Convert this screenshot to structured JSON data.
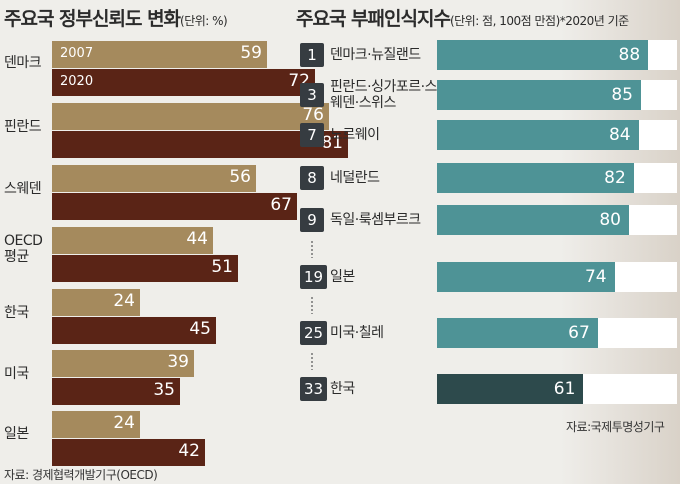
{
  "left": {
    "title": "주요국 정부신뢰도 변화",
    "unit": "(단위: %)",
    "source": "자료: 경제협력개발기구(OECD)"
  },
  "right": {
    "title": "주요국 부패인식지수",
    "unit": "(단위: 점, 100점 만점)*2020년 기준",
    "source": "자료:국제투명성기구"
  },
  "colors": {
    "bar_2007": "#a58a5d",
    "bar_2020": "#5a2416",
    "bar_cpi": "#4e9396",
    "bar_cpi_highlight": "#2d4a4c",
    "rank_badge": "#363c41"
  },
  "chart_data": [
    {
      "type": "bar",
      "orientation": "horizontal",
      "title": "주요국 정부신뢰도 변화",
      "unit": "%",
      "categories": [
        "덴마크",
        "핀란드",
        "스웨덴",
        "OECD 평균",
        "한국",
        "미국",
        "일본"
      ],
      "series": [
        {
          "name": "2007",
          "values": [
            59,
            76,
            56,
            44,
            24,
            39,
            24
          ]
        },
        {
          "name": "2020",
          "values": [
            72,
            81,
            67,
            51,
            45,
            35,
            42
          ]
        }
      ],
      "xlim": [
        0,
        100
      ],
      "source": "자료: 경제협력개발기구(OECD)"
    },
    {
      "type": "bar",
      "orientation": "horizontal",
      "title": "주요국 부패인식지수",
      "unit": "점, 100점 만점",
      "note": "*2020년 기준",
      "ranks": [
        "1",
        "3",
        "7",
        "8",
        "9",
        "19",
        "25",
        "33"
      ],
      "categories": [
        "덴마크·뉴질랜드",
        "핀란드·싱가포르·스웨덴·스위스",
        "노르웨이",
        "네덜란드",
        "독일·룩셈부르크",
        "일본",
        "미국·칠레",
        "한국"
      ],
      "values": [
        88,
        85,
        84,
        82,
        80,
        74,
        67,
        61
      ],
      "highlight": "한국",
      "xlim": [
        0,
        100
      ],
      "source": "자료:국제투명성기구"
    }
  ]
}
